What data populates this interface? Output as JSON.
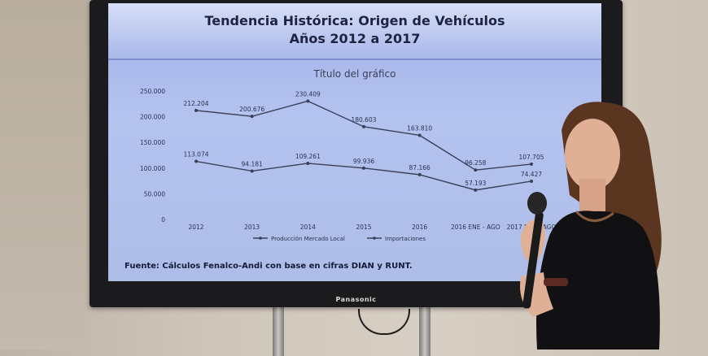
{
  "slide": {
    "title_line1": "Tendencia Histórica: Origen de Vehículos",
    "title_line2": "Años 2012 a 2017",
    "source": "Fuente: Cálculos Fenalco-Andi con base en cifras DIAN y RUNT."
  },
  "tv": {
    "brand": "Panasonic"
  },
  "chart_data": {
    "type": "line",
    "title": "Título del gráfico",
    "categories": [
      "2012",
      "2013",
      "2014",
      "2015",
      "2016",
      "2016 ENE - AGO",
      "2017 ENE - AGO"
    ],
    "series": [
      {
        "name": "Producción Mercado Local",
        "values": [
          212204,
          200676,
          230409,
          180603,
          163810,
          96258,
          107705
        ],
        "labels": [
          "212.204",
          "200.676",
          "230.409",
          "180.603",
          "163.810",
          "96.258",
          "107.705"
        ]
      },
      {
        "name": "Importaciones",
        "values": [
          113074,
          94181,
          109261,
          99936,
          87166,
          57193,
          74427
        ],
        "labels": [
          "113.074",
          "94.181",
          "109.261",
          "99.936",
          "87.166",
          "57.193",
          "74.427"
        ]
      }
    ],
    "yticks": [
      "0",
      "50.000",
      "100.000",
      "150.000",
      "200.000",
      "250.000"
    ],
    "ylim": [
      0,
      250000
    ],
    "grid": false,
    "legend": "bottom",
    "colors": {
      "line": "#3b3f58",
      "text": "#2c3150"
    }
  }
}
